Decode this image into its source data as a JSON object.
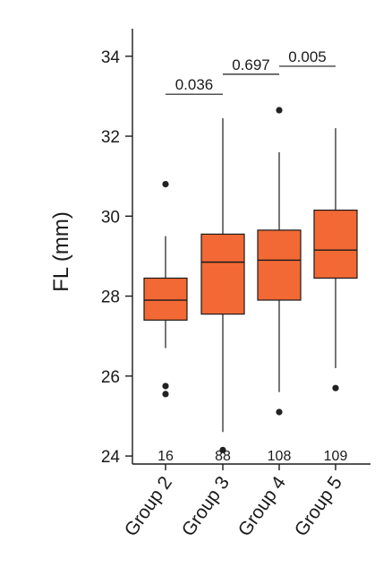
{
  "chart_data": {
    "type": "box",
    "ylabel": "FL (mm)",
    "ylim": [
      23.8,
      34.6
    ],
    "yticks": [
      24,
      26,
      28,
      30,
      32,
      34
    ],
    "box_color": "#f26935",
    "line_color": "#1a1a1a",
    "categories": [
      "Group 2",
      "Group 3",
      "Group 4",
      "Group 5"
    ],
    "boxes": [
      {
        "name": "Group 2",
        "n": "16",
        "whisker_low": 26.7,
        "q1": 27.4,
        "median": 27.9,
        "q3": 28.45,
        "whisker_high": 29.5,
        "outliers": [
          30.8,
          25.75,
          25.55
        ]
      },
      {
        "name": "Group 3",
        "n": "88",
        "whisker_low": 24.6,
        "q1": 27.55,
        "median": 28.85,
        "q3": 29.55,
        "whisker_high": 32.45,
        "outliers": [
          24.15
        ]
      },
      {
        "name": "Group 4",
        "n": "108",
        "whisker_low": 25.6,
        "q1": 27.9,
        "median": 28.9,
        "q3": 29.65,
        "whisker_high": 31.6,
        "outliers": [
          32.65,
          25.1
        ]
      },
      {
        "name": "Group 5",
        "n": "109",
        "whisker_low": 26.2,
        "q1": 28.45,
        "median": 29.15,
        "q3": 30.15,
        "whisker_high": 32.2,
        "outliers": [
          25.7
        ]
      }
    ],
    "comparisons": [
      {
        "from": "Group 2",
        "to": "Group 3",
        "label": "0.036",
        "y": 33.05
      },
      {
        "from": "Group 3",
        "to": "Group 4",
        "label": "0.697",
        "y": 33.55
      },
      {
        "from": "Group 4",
        "to": "Group 5",
        "label": "0.005",
        "y": 33.75
      }
    ]
  }
}
